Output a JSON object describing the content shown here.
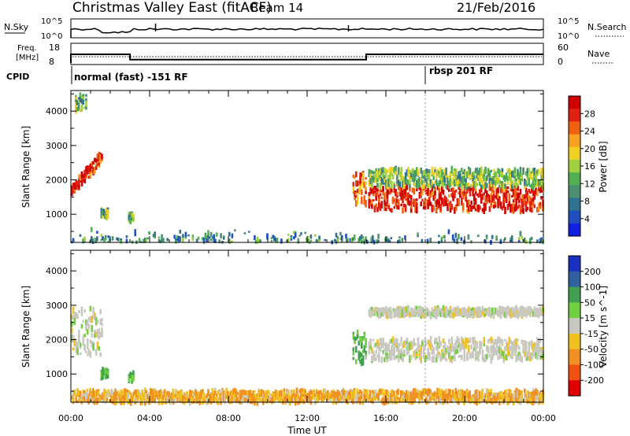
{
  "header": {
    "station": "Christmas Valley East (fitACF)",
    "beam": "Beam 14",
    "date": "21/Feb/2016"
  },
  "top_panels": {
    "nsky_label": "N.Sky",
    "nsearch_label": "N.Search",
    "nsky_ticks": [
      "10^5",
      "10^0"
    ],
    "nsearch_ticks": [
      "10^5",
      "10^0"
    ],
    "freq_label_line1": "Freq.",
    "freq_label_line2": "[MHz]",
    "freq_ticks": [
      "18",
      "8"
    ],
    "nave_label": "Nave",
    "nave_ticks": [
      "60",
      "0"
    ],
    "cpid_label": "CPID",
    "cpid_segments": [
      {
        "label": "normal (fast) -151 RF",
        "start_hour": 0
      },
      {
        "label": "rbsp 201 RF",
        "start_hour": 18
      }
    ]
  },
  "x_axis": {
    "label": "Time UT",
    "tick_labels": [
      "00:00",
      "04:00",
      "08:00",
      "12:00",
      "16:00",
      "20:00",
      "00:00"
    ],
    "range_hours": [
      0,
      24
    ]
  },
  "power_panel": {
    "ylabel": "Slant Range [km]",
    "yticks": [
      "4000",
      "3000",
      "2000",
      "1000"
    ],
    "colorbar_label": "Power [dB]",
    "colorbar_ticks": [
      "28",
      "24",
      "20",
      "16",
      "12",
      "8",
      "4"
    ],
    "colors": [
      "#1020e0",
      "#2050c0",
      "#307090",
      "#4a9070",
      "#50b050",
      "#a0d040",
      "#f0d020",
      "#f8a020",
      "#f06010",
      "#e02010",
      "#d00000"
    ]
  },
  "velocity_panel": {
    "ylabel": "Slant Range [km]",
    "yticks": [
      "4000",
      "3000",
      "2000",
      "1000"
    ],
    "colorbar_label": "Velocity [m s^-1]",
    "colorbar_ticks": [
      "200",
      "100",
      "50",
      "15",
      "-15",
      "-50",
      "-100",
      "-200"
    ],
    "colors": [
      "#1a30c0",
      "#3060a0",
      "#40a050",
      "#70d040",
      "#c8c8c0",
      "#f0c020",
      "#f09020",
      "#f05010",
      "#e00000"
    ]
  },
  "chart_data": {
    "type": "heatmap",
    "x_range_hours": [
      0,
      24
    ],
    "y_range_km": [
      180,
      4600
    ],
    "frequency_mhz": [
      {
        "start": 0,
        "end": 3,
        "value": 13
      },
      {
        "start": 3,
        "end": 15,
        "value": 10.5
      },
      {
        "start": 15,
        "end": 24,
        "value": 13
      }
    ],
    "nave_level": 13,
    "power_regions": [
      {
        "t0": 0.0,
        "t1": 1.6,
        "r0": 1550,
        "r1": 2900,
        "db": 28,
        "note": "slanted main echo"
      },
      {
        "t0": 1.5,
        "t1": 1.9,
        "r0": 900,
        "r1": 1100,
        "db": 14
      },
      {
        "t0": 2.9,
        "t1": 3.2,
        "r0": 800,
        "r1": 1000,
        "db": 12
      },
      {
        "t0": 0.2,
        "t1": 0.8,
        "r0": 4000,
        "r1": 4500,
        "db": 14
      },
      {
        "t0": 14.3,
        "t1": 15.0,
        "r0": 1300,
        "r1": 2200,
        "db": 24
      },
      {
        "t0": 15.1,
        "t1": 24.0,
        "r0": 1100,
        "r1": 1800,
        "db": 28
      },
      {
        "t0": 15.1,
        "t1": 24.0,
        "r0": 1800,
        "r1": 2300,
        "db": 14
      },
      {
        "t0": 0.0,
        "t1": 24.0,
        "r0": 180,
        "r1": 500,
        "db": 10,
        "note": "near-range scatter"
      }
    ],
    "velocity_regions": [
      {
        "t0": 0.0,
        "t1": 1.6,
        "r0": 1550,
        "r1": 2900,
        "v": 0
      },
      {
        "t0": 1.5,
        "t1": 1.9,
        "r0": 900,
        "r1": 1100,
        "v": 40
      },
      {
        "t0": 2.9,
        "t1": 3.2,
        "r0": 800,
        "r1": 1000,
        "v": 40
      },
      {
        "t0": 14.3,
        "t1": 15.0,
        "r0": 1300,
        "r1": 2200,
        "v": 30
      },
      {
        "t0": 15.1,
        "t1": 24.0,
        "r0": 1400,
        "r1": 2000,
        "v": 0
      },
      {
        "t0": 15.1,
        "t1": 24.0,
        "r0": 2700,
        "r1": 2900,
        "v": 0
      },
      {
        "t0": 0.0,
        "t1": 24.0,
        "r0": 180,
        "r1": 500,
        "v": -30
      }
    ]
  }
}
